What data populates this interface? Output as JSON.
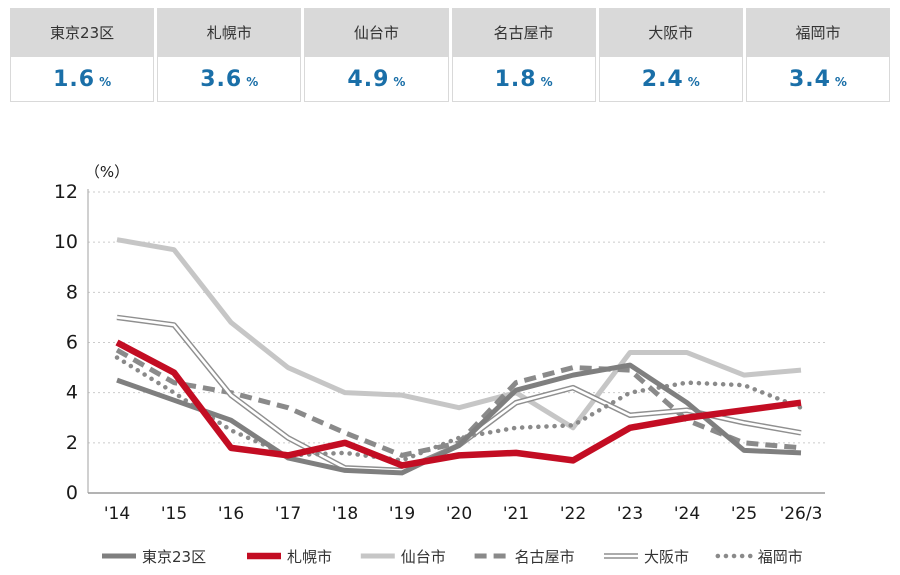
{
  "colors": {
    "accent_red": "#c30d23",
    "value_blue": "#1a6fa8",
    "header_bg": "#d9d9d9",
    "line_gray_dark": "#7f7f7f",
    "line_gray_light": "#c6c6c6",
    "line_gray_mid": "#8a8a8a"
  },
  "summary": {
    "cards": [
      {
        "city": "東京23区",
        "value": "1.6",
        "unit": "%"
      },
      {
        "city": "札幌市",
        "value": "3.6",
        "unit": "%"
      },
      {
        "city": "仙台市",
        "value": "4.9",
        "unit": "%"
      },
      {
        "city": "名古屋市",
        "value": "1.8",
        "unit": "%"
      },
      {
        "city": "大阪市",
        "value": "2.4",
        "unit": "%"
      },
      {
        "city": "福岡市",
        "value": "3.4",
        "unit": "%"
      }
    ]
  },
  "chart_data": {
    "type": "line",
    "title": "",
    "ylabel": "（%）",
    "xlabel": "",
    "ylim": [
      0,
      12
    ],
    "yticks": [
      0,
      2,
      4,
      6,
      8,
      10,
      12
    ],
    "grid": true,
    "legend_position": "bottom",
    "categories": [
      "'14",
      "'15",
      "'16",
      "'17",
      "'18",
      "'19",
      "'20",
      "'21",
      "'22",
      "'23",
      "'24",
      "'25",
      "'26/3"
    ],
    "series": [
      {
        "name": "東京23区",
        "style": "solid",
        "color": "#7f7f7f",
        "values": [
          4.5,
          3.7,
          2.9,
          1.4,
          0.9,
          0.8,
          1.9,
          4.1,
          4.7,
          5.1,
          3.6,
          1.7,
          1.6
        ]
      },
      {
        "name": "札幌市",
        "style": "solid",
        "color": "#c30d23",
        "values": [
          6.0,
          4.8,
          1.8,
          1.5,
          2.0,
          1.1,
          1.5,
          1.6,
          1.3,
          2.6,
          3.0,
          3.3,
          3.6
        ]
      },
      {
        "name": "仙台市",
        "style": "solid",
        "color": "#c6c6c6",
        "values": [
          10.1,
          9.7,
          6.8,
          5.0,
          4.0,
          3.9,
          3.4,
          4.0,
          2.6,
          5.6,
          5.6,
          4.7,
          4.9
        ]
      },
      {
        "name": "名古屋市",
        "style": "dashed",
        "color": "#8a8a8a",
        "values": [
          5.7,
          4.4,
          4.0,
          3.4,
          2.4,
          1.5,
          2.0,
          4.4,
          5.0,
          4.9,
          2.9,
          2.0,
          1.8
        ]
      },
      {
        "name": "大阪市",
        "style": "double",
        "color": "#8f8f8f",
        "values": [
          7.0,
          6.7,
          3.9,
          2.2,
          1.0,
          0.9,
          1.9,
          3.6,
          4.2,
          3.1,
          3.3,
          2.8,
          2.4
        ]
      },
      {
        "name": "福岡市",
        "style": "dotted",
        "color": "#8a8a8a",
        "values": [
          5.4,
          4.0,
          2.5,
          1.5,
          1.6,
          1.3,
          2.2,
          2.6,
          2.7,
          4.0,
          4.4,
          4.3,
          3.4
        ]
      }
    ]
  }
}
